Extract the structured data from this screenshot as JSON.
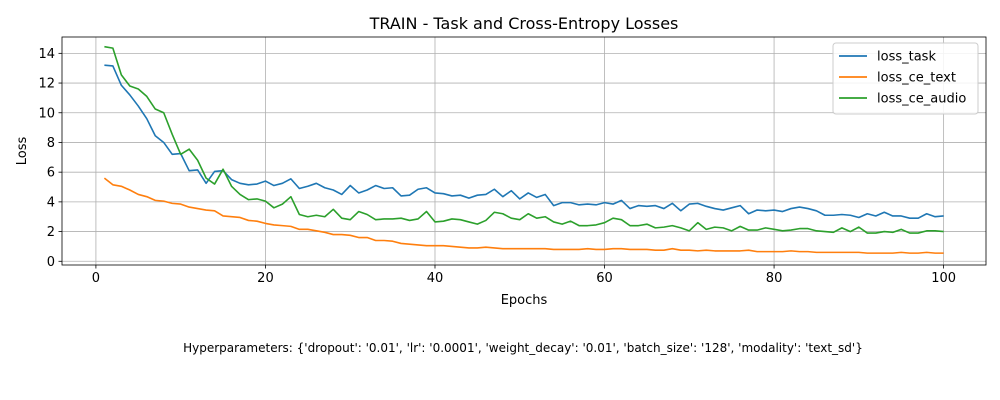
{
  "chart_data": {
    "type": "line",
    "title": "TRAIN - Task and Cross-Entropy Losses",
    "xlabel": "Epochs",
    "ylabel": "Loss",
    "xlim": [
      -4,
      105
    ],
    "ylim": [
      -0.25,
      15.1
    ],
    "xticks": [
      0,
      20,
      40,
      60,
      80,
      100
    ],
    "yticks": [
      0,
      2,
      4,
      6,
      8,
      10,
      12,
      14
    ],
    "grid": true,
    "legend_position": "top-right",
    "x": [
      1,
      2,
      3,
      4,
      5,
      6,
      7,
      8,
      9,
      10,
      11,
      12,
      13,
      14,
      15,
      16,
      17,
      18,
      19,
      20,
      21,
      22,
      23,
      24,
      25,
      26,
      27,
      28,
      29,
      30,
      31,
      32,
      33,
      34,
      35,
      36,
      37,
      38,
      39,
      40,
      41,
      42,
      43,
      44,
      45,
      46,
      47,
      48,
      49,
      50,
      51,
      52,
      53,
      54,
      55,
      56,
      57,
      58,
      59,
      60,
      61,
      62,
      63,
      64,
      65,
      66,
      67,
      68,
      69,
      70,
      71,
      72,
      73,
      74,
      75,
      76,
      77,
      78,
      79,
      80,
      81,
      82,
      83,
      84,
      85,
      86,
      87,
      88,
      89,
      90,
      91,
      92,
      93,
      94,
      95,
      96,
      97,
      98,
      99,
      100
    ],
    "series": [
      {
        "name": "loss_task",
        "color": "#1f77b4",
        "values": [
          13.2,
          13.15,
          11.85,
          11.2,
          10.45,
          9.6,
          8.45,
          8.0,
          7.2,
          7.25,
          6.1,
          6.15,
          5.25,
          6.05,
          6.1,
          5.5,
          5.25,
          5.15,
          5.2,
          5.4,
          5.1,
          5.25,
          5.55,
          4.9,
          5.05,
          5.25,
          4.95,
          4.8,
          4.5,
          5.1,
          4.6,
          4.8,
          5.1,
          4.9,
          4.95,
          4.4,
          4.45,
          4.85,
          4.95,
          4.6,
          4.55,
          4.4,
          4.45,
          4.25,
          4.45,
          4.5,
          4.85,
          4.35,
          4.75,
          4.2,
          4.6,
          4.3,
          4.5,
          3.75,
          3.95,
          3.95,
          3.8,
          3.85,
          3.8,
          3.95,
          3.85,
          4.1,
          3.55,
          3.75,
          3.7,
          3.75,
          3.55,
          3.9,
          3.4,
          3.85,
          3.9,
          3.7,
          3.55,
          3.45,
          3.6,
          3.75,
          3.2,
          3.45,
          3.4,
          3.45,
          3.35,
          3.55,
          3.65,
          3.55,
          3.4,
          3.1,
          3.1,
          3.15,
          3.1,
          2.95,
          3.2,
          3.05,
          3.3,
          3.05,
          3.05,
          2.9,
          2.9,
          3.2,
          3.0,
          3.05
        ]
      },
      {
        "name": "loss_ce_text",
        "color": "#ff7f0e",
        "values": [
          5.6,
          5.15,
          5.05,
          4.8,
          4.5,
          4.35,
          4.1,
          4.05,
          3.9,
          3.85,
          3.65,
          3.55,
          3.45,
          3.4,
          3.05,
          3.0,
          2.95,
          2.75,
          2.7,
          2.55,
          2.45,
          2.4,
          2.35,
          2.15,
          2.15,
          2.05,
          1.95,
          1.8,
          1.8,
          1.75,
          1.6,
          1.6,
          1.4,
          1.4,
          1.35,
          1.2,
          1.15,
          1.1,
          1.05,
          1.05,
          1.05,
          1.0,
          0.95,
          0.9,
          0.9,
          0.95,
          0.9,
          0.85,
          0.85,
          0.85,
          0.85,
          0.85,
          0.85,
          0.8,
          0.8,
          0.8,
          0.8,
          0.85,
          0.8,
          0.8,
          0.85,
          0.85,
          0.8,
          0.8,
          0.8,
          0.75,
          0.75,
          0.85,
          0.75,
          0.75,
          0.7,
          0.75,
          0.7,
          0.7,
          0.7,
          0.7,
          0.75,
          0.65,
          0.65,
          0.65,
          0.65,
          0.7,
          0.65,
          0.65,
          0.6,
          0.6,
          0.6,
          0.6,
          0.6,
          0.6,
          0.55,
          0.55,
          0.55,
          0.55,
          0.6,
          0.55,
          0.55,
          0.6,
          0.55,
          0.55
        ]
      },
      {
        "name": "loss_ce_audio",
        "color": "#2ca02c",
        "values": [
          14.45,
          14.35,
          12.55,
          11.8,
          11.6,
          11.1,
          10.25,
          10.0,
          8.55,
          7.2,
          7.55,
          6.8,
          5.6,
          5.2,
          6.2,
          5.05,
          4.5,
          4.15,
          4.2,
          4.05,
          3.6,
          3.85,
          4.35,
          3.15,
          3.0,
          3.1,
          3.0,
          3.5,
          2.9,
          2.8,
          3.35,
          3.15,
          2.8,
          2.85,
          2.85,
          2.9,
          2.75,
          2.85,
          3.35,
          2.65,
          2.7,
          2.85,
          2.8,
          2.65,
          2.5,
          2.75,
          3.3,
          3.2,
          2.9,
          2.8,
          3.2,
          2.9,
          3.0,
          2.65,
          2.5,
          2.7,
          2.4,
          2.4,
          2.45,
          2.6,
          2.9,
          2.8,
          2.4,
          2.4,
          2.5,
          2.25,
          2.3,
          2.4,
          2.25,
          2.05,
          2.6,
          2.15,
          2.3,
          2.25,
          2.05,
          2.35,
          2.1,
          2.1,
          2.25,
          2.15,
          2.05,
          2.1,
          2.2,
          2.2,
          2.05,
          2.0,
          1.95,
          2.25,
          2.0,
          2.3,
          1.9,
          1.9,
          2.0,
          1.95,
          2.15,
          1.9,
          1.9,
          2.05,
          2.05,
          2.0
        ]
      }
    ]
  },
  "footnote": "Hyperparameters: {'dropout': '0.01', 'lr': '0.0001', 'weight_decay': '0.01', 'batch_size': '128', 'modality': 'text_sd'}"
}
